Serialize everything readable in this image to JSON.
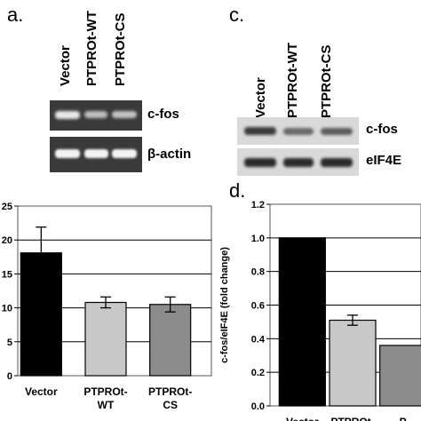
{
  "panels": {
    "a": {
      "letter": "a.",
      "lanes": [
        "Vector",
        "PTPROt-WT",
        "PTPROt-CS"
      ],
      "bands": [
        "c-fos",
        "β-actin"
      ]
    },
    "c": {
      "letter": "c.",
      "lanes": [
        "Vector",
        "PTPROt-WT",
        "PTPROt-CS"
      ],
      "bands": [
        "c-fos",
        "eIF4E"
      ]
    },
    "d": {
      "letter": "d."
    }
  },
  "chart_data": [
    {
      "type": "bar",
      "categories": [
        "Vector",
        "PTPROt-\nWT",
        "PTPROt-\nCS"
      ],
      "values": [
        18.1,
        10.8,
        10.5
      ],
      "errors": [
        3.8,
        0.8,
        1.1
      ],
      "colors": [
        "#000000",
        "#c8c8c8",
        "#8c8c8c"
      ],
      "yticks": [
        "25",
        "20",
        "15",
        "10",
        "5",
        "0"
      ],
      "ylim": [
        0,
        25
      ],
      "grid": true
    },
    {
      "type": "bar",
      "categories": [
        "Vector",
        "PTPROt-\nWT",
        "P"
      ],
      "values": [
        1.0,
        0.51,
        0.36
      ],
      "errors": [
        0,
        0.03,
        0
      ],
      "colors": [
        "#000000",
        "#c8c8c8",
        "#8c8c8c"
      ],
      "ylabel": "c-fos/eIF4E (fold change)",
      "yticks": [
        "1.2",
        "1.0",
        "0.8",
        "0.6",
        "0.4",
        "0.2",
        "0.0"
      ],
      "ylim": [
        0,
        1.2
      ],
      "grid": true
    }
  ]
}
